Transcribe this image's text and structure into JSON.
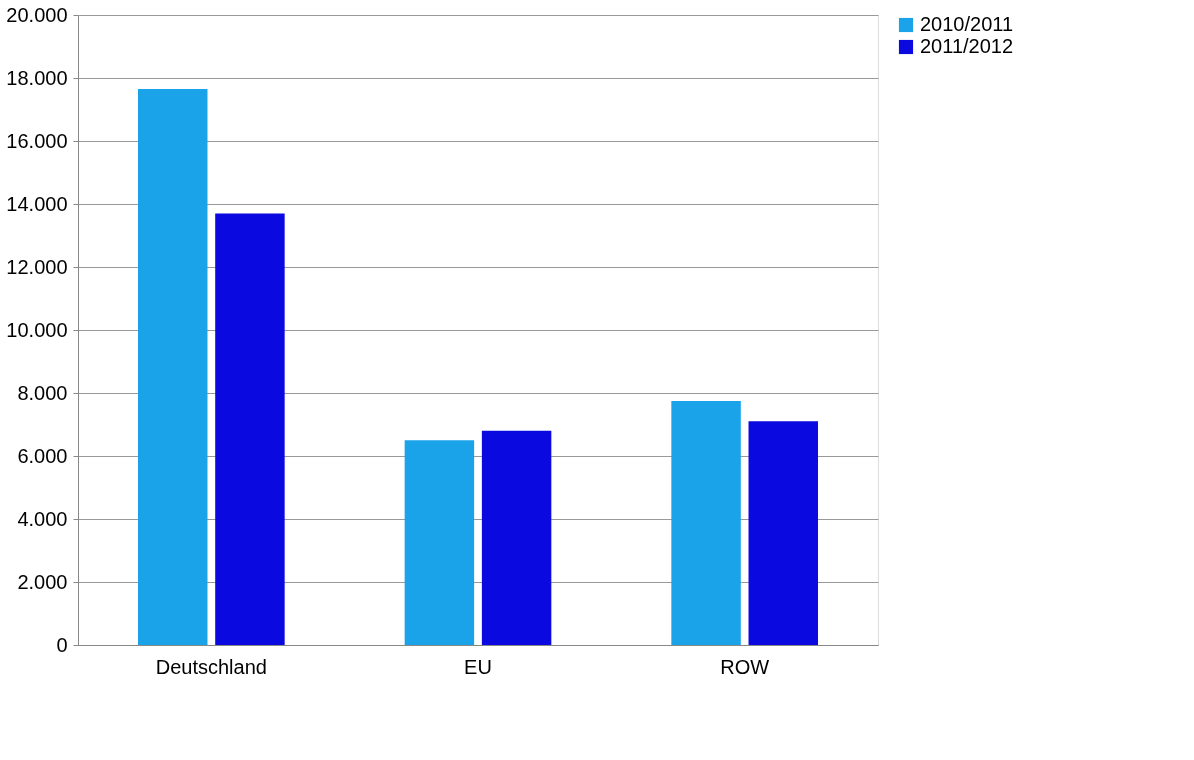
{
  "chart_data": {
    "type": "bar",
    "categories": [
      "Deutschland",
      "EU",
      "ROW"
    ],
    "series": [
      {
        "name": "2010/2011",
        "color": "#1aa3e8",
        "values": [
          17650,
          6500,
          7750
        ]
      },
      {
        "name": "2011/2012",
        "color": "#0a0ae0",
        "values": [
          13700,
          6800,
          7100
        ]
      }
    ],
    "ylim": [
      0,
      20000
    ],
    "yticks": [
      {
        "value": 0,
        "label": "0"
      },
      {
        "value": 2000,
        "label": "2.000"
      },
      {
        "value": 4000,
        "label": "4.000"
      },
      {
        "value": 6000,
        "label": "6.000"
      },
      {
        "value": 8000,
        "label": "8.000"
      },
      {
        "value": 10000,
        "label": "10.000"
      },
      {
        "value": 12000,
        "label": "12.000"
      },
      {
        "value": 14000,
        "label": "14.000"
      },
      {
        "value": 16000,
        "label": "16.000"
      },
      {
        "value": 18000,
        "label": "18.000"
      },
      {
        "value": 20000,
        "label": "20.000"
      }
    ],
    "grid": "y",
    "legend": "right"
  }
}
